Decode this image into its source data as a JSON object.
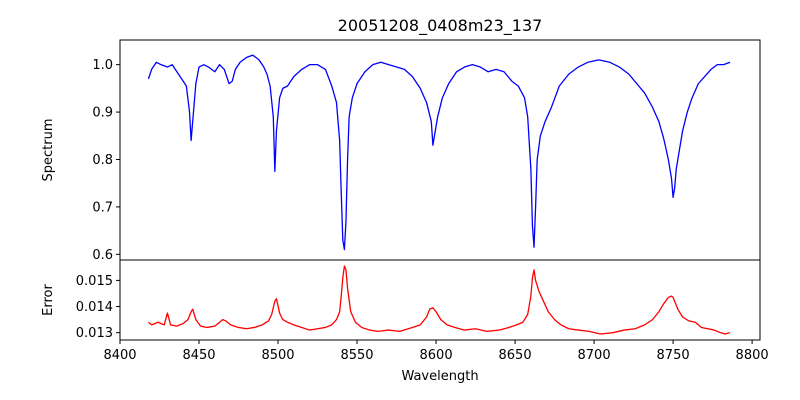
{
  "chart_data": [
    {
      "type": "line",
      "title": "20051208_0408m23_137",
      "xlabel": "",
      "ylabel": "Spectrum",
      "xlim": [
        8400,
        8805
      ],
      "ylim": [
        0.588,
        1.052
      ],
      "xticks": [
        8400,
        8450,
        8500,
        8550,
        8600,
        8650,
        8700,
        8750,
        8800
      ],
      "yticks": [
        0.6,
        0.7,
        0.8,
        0.9,
        1.0
      ],
      "ytick_labels": [
        "0.6",
        "0.7",
        "0.8",
        "0.9",
        "1.0"
      ],
      "color": "#0000ff",
      "grid": false,
      "series": [
        {
          "x": [
            8418,
            8420,
            8423,
            8426,
            8430,
            8433,
            8436,
            8439,
            8442,
            8444,
            8445,
            8446,
            8448,
            8450,
            8453,
            8456,
            8460,
            8463,
            8466,
            8469,
            8471,
            8473,
            8476,
            8480,
            8484,
            8488,
            8491,
            8493,
            8495,
            8497,
            8498,
            8499,
            8501,
            8503,
            8506,
            8510,
            8515,
            8520,
            8525,
            8530,
            8534,
            8537,
            8539,
            8540,
            8541,
            8542,
            8543,
            8544,
            8545,
            8547,
            8550,
            8555,
            8560,
            8565,
            8570,
            8575,
            8580,
            8585,
            8590,
            8594,
            8597,
            8598,
            8599,
            8601,
            8604,
            8608,
            8613,
            8618,
            8623,
            8628,
            8633,
            8638,
            8643,
            8648,
            8652,
            8656,
            8658,
            8660,
            8661,
            8662,
            8663,
            8664,
            8666,
            8669,
            8673,
            8678,
            8684,
            8690,
            8696,
            8703,
            8710,
            8716,
            8722,
            8727,
            8732,
            8737,
            8741,
            8744,
            8747,
            8749,
            8750,
            8751,
            8752,
            8754,
            8756,
            8759,
            8762,
            8766,
            8770,
            8774,
            8778,
            8782,
            8786
          ],
          "y": [
            0.97,
            0.99,
            1.005,
            1.0,
            0.995,
            1.0,
            0.985,
            0.97,
            0.955,
            0.9,
            0.84,
            0.88,
            0.96,
            0.995,
            1.0,
            0.995,
            0.985,
            1.0,
            0.99,
            0.96,
            0.965,
            0.99,
            1.005,
            1.015,
            1.02,
            1.01,
            0.995,
            0.98,
            0.955,
            0.89,
            0.775,
            0.86,
            0.93,
            0.95,
            0.955,
            0.975,
            0.99,
            1.0,
            1.0,
            0.99,
            0.955,
            0.92,
            0.84,
            0.73,
            0.63,
            0.61,
            0.67,
            0.8,
            0.89,
            0.93,
            0.96,
            0.985,
            1.0,
            1.005,
            1.0,
            0.995,
            0.99,
            0.975,
            0.95,
            0.92,
            0.88,
            0.83,
            0.85,
            0.89,
            0.93,
            0.96,
            0.985,
            0.995,
            1.0,
            0.995,
            0.985,
            0.99,
            0.985,
            0.965,
            0.955,
            0.93,
            0.89,
            0.78,
            0.66,
            0.615,
            0.7,
            0.8,
            0.85,
            0.88,
            0.91,
            0.955,
            0.98,
            0.995,
            1.005,
            1.01,
            1.005,
            0.995,
            0.98,
            0.96,
            0.94,
            0.91,
            0.88,
            0.845,
            0.8,
            0.76,
            0.72,
            0.74,
            0.78,
            0.82,
            0.86,
            0.9,
            0.93,
            0.96,
            0.975,
            0.99,
            1.0,
            1.0,
            1.005
          ]
        }
      ]
    },
    {
      "type": "line",
      "title": "",
      "xlabel": "Wavelength",
      "ylabel": "Error",
      "xlim": [
        8400,
        8805
      ],
      "ylim": [
        0.01272,
        0.01578
      ],
      "xticks": [
        8400,
        8450,
        8500,
        8550,
        8600,
        8650,
        8700,
        8750,
        8800
      ],
      "xtick_labels": [
        "8400",
        "8450",
        "8500",
        "8550",
        "8600",
        "8650",
        "8700",
        "8750",
        "8800"
      ],
      "yticks": [
        0.013,
        0.014,
        0.015
      ],
      "ytick_labels": [
        "0.013",
        "0.014",
        "0.015"
      ],
      "color": "#ff0000",
      "grid": false,
      "series": [
        {
          "x": [
            8418,
            8420,
            8424,
            8428,
            8430,
            8432,
            8436,
            8440,
            8443,
            8445,
            8446,
            8448,
            8451,
            8455,
            8460,
            8463,
            8465,
            8467,
            8470,
            8475,
            8480,
            8485,
            8490,
            8494,
            8496,
            8498,
            8499,
            8501,
            8503,
            8506,
            8510,
            8515,
            8520,
            8525,
            8530,
            8534,
            8537,
            8539,
            8540,
            8541,
            8542,
            8543,
            8544,
            8546,
            8549,
            8553,
            8558,
            8563,
            8570,
            8577,
            8585,
            8590,
            8594,
            8596,
            8598,
            8600,
            8603,
            8607,
            8612,
            8618,
            8625,
            8632,
            8640,
            8646,
            8651,
            8655,
            8658,
            8660,
            8661,
            8662,
            8663,
            8665,
            8668,
            8671,
            8675,
            8679,
            8684,
            8690,
            8697,
            8704,
            8712,
            8719,
            8726,
            8732,
            8737,
            8741,
            8744,
            8747,
            8749,
            8750,
            8751,
            8753,
            8756,
            8760,
            8764,
            8768,
            8772,
            8776,
            8780,
            8783,
            8786
          ],
          "y": [
            0.0134,
            0.0133,
            0.0134,
            0.0133,
            0.01375,
            0.0133,
            0.01325,
            0.01335,
            0.0135,
            0.0138,
            0.0139,
            0.0135,
            0.01325,
            0.0132,
            0.01325,
            0.0134,
            0.0135,
            0.01345,
            0.0133,
            0.0132,
            0.01315,
            0.0132,
            0.0133,
            0.01345,
            0.0137,
            0.0142,
            0.0143,
            0.01375,
            0.0135,
            0.0134,
            0.0133,
            0.0132,
            0.0131,
            0.01315,
            0.0132,
            0.0133,
            0.0135,
            0.0138,
            0.0144,
            0.0151,
            0.01555,
            0.0154,
            0.0147,
            0.0138,
            0.0134,
            0.0132,
            0.0131,
            0.01305,
            0.0131,
            0.01305,
            0.0132,
            0.0133,
            0.0136,
            0.0139,
            0.01395,
            0.0138,
            0.0135,
            0.0133,
            0.0132,
            0.0131,
            0.01315,
            0.01305,
            0.0131,
            0.0132,
            0.0133,
            0.0134,
            0.0137,
            0.0144,
            0.0151,
            0.0154,
            0.015,
            0.0146,
            0.0142,
            0.0138,
            0.0135,
            0.0133,
            0.01315,
            0.0131,
            0.01305,
            0.01295,
            0.013,
            0.0131,
            0.01315,
            0.0133,
            0.0135,
            0.0138,
            0.0141,
            0.01435,
            0.0144,
            0.01435,
            0.0142,
            0.0139,
            0.0136,
            0.01345,
            0.0134,
            0.0132,
            0.01315,
            0.0131,
            0.013,
            0.01295,
            0.013
          ]
        }
      ]
    }
  ]
}
